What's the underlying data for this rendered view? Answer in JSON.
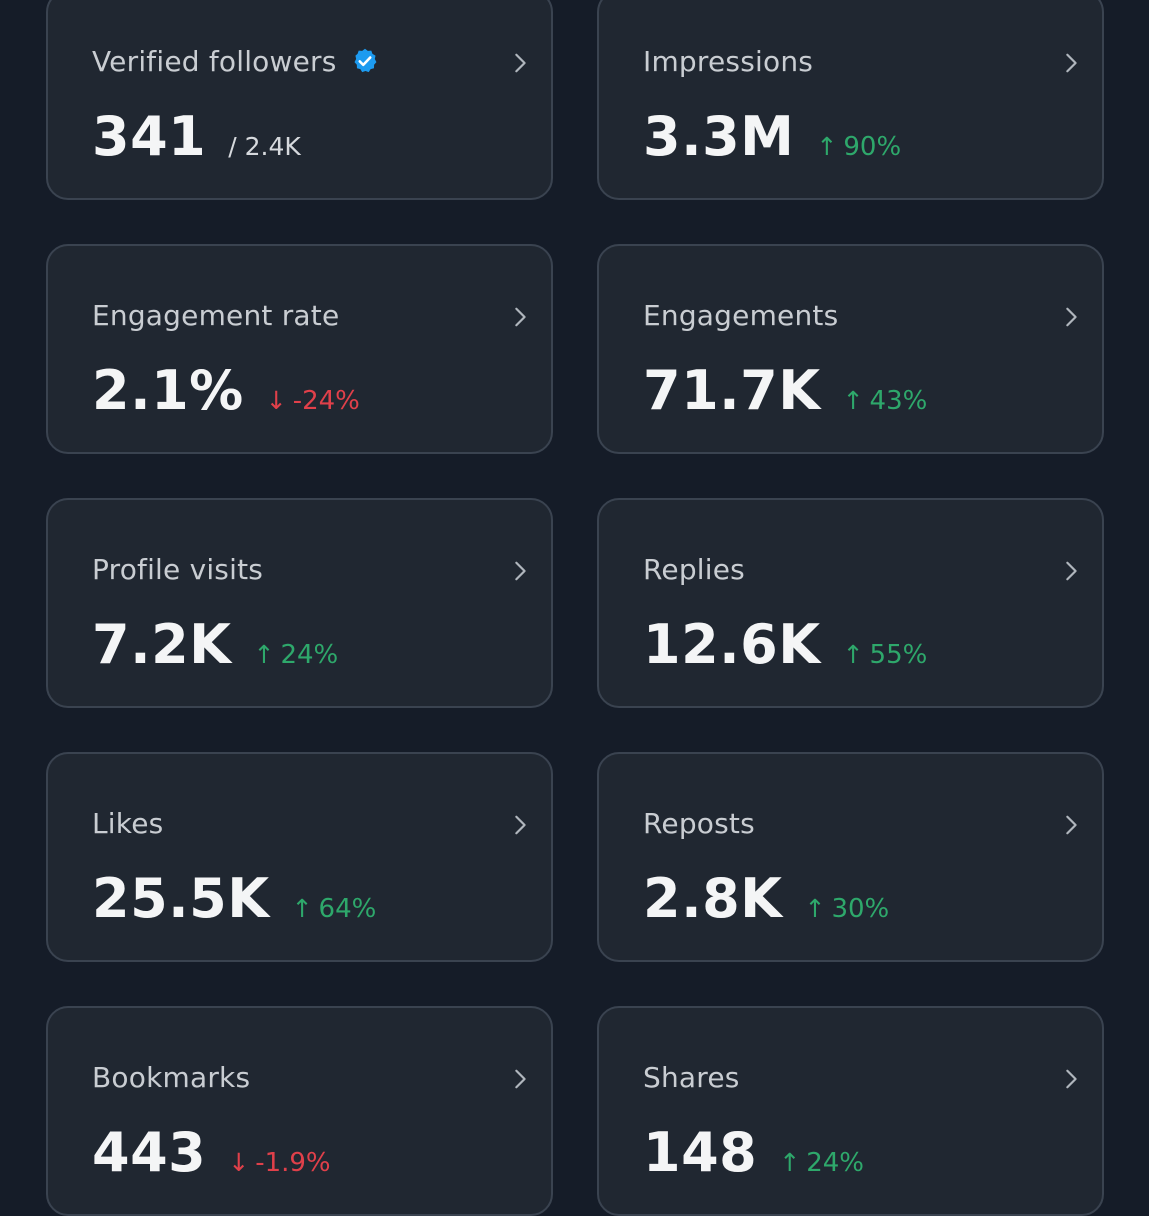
{
  "colors": {
    "background": "#151c28",
    "card": "#202731",
    "border": "#3a4350",
    "up": "#2ea86b",
    "down": "#e0404a",
    "verified": "#1d9bf0"
  },
  "metrics": [
    {
      "label": "Verified followers",
      "value": "341",
      "sub": "/ 2.4K",
      "icon": "verified-badge-icon"
    },
    {
      "label": "Impressions",
      "value": "3.3M",
      "change": "90%",
      "direction": "up"
    },
    {
      "label": "Engagement rate",
      "value": "2.1%",
      "change": "-24%",
      "direction": "down"
    },
    {
      "label": "Engagements",
      "value": "71.7K",
      "change": "43%",
      "direction": "up"
    },
    {
      "label": "Profile visits",
      "value": "7.2K",
      "change": "24%",
      "direction": "up"
    },
    {
      "label": "Replies",
      "value": "12.6K",
      "change": "55%",
      "direction": "up"
    },
    {
      "label": "Likes",
      "value": "25.5K",
      "change": "64%",
      "direction": "up"
    },
    {
      "label": "Reposts",
      "value": "2.8K",
      "change": "30%",
      "direction": "up"
    },
    {
      "label": "Bookmarks",
      "value": "443",
      "change": "-1.9%",
      "direction": "down"
    },
    {
      "label": "Shares",
      "value": "148",
      "change": "24%",
      "direction": "up"
    }
  ]
}
